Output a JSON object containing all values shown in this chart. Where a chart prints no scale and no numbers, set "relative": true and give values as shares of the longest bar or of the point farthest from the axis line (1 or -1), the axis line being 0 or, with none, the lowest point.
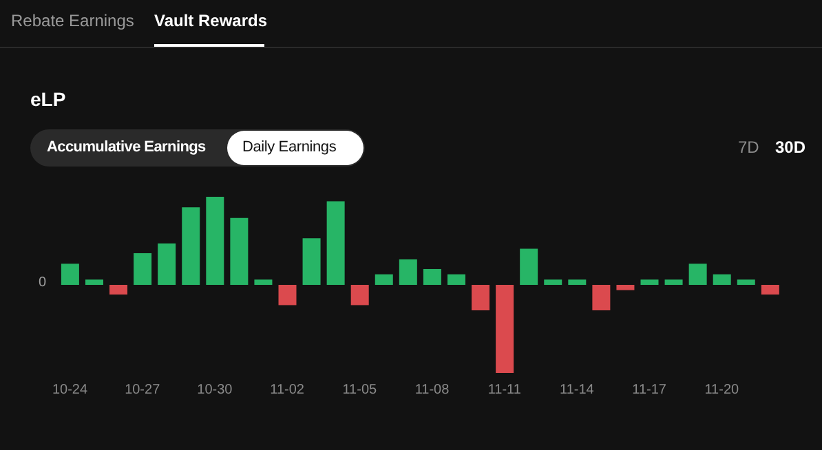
{
  "chart_data": {
    "type": "bar",
    "title": "eLP",
    "relative": true,
    "categories": [
      "10-24",
      null,
      null,
      "10-27",
      null,
      null,
      "10-30",
      null,
      null,
      "11-02",
      null,
      null,
      "11-05",
      null,
      null,
      "11-08",
      null,
      null,
      "11-11",
      null,
      null,
      "11-14",
      null,
      null,
      "11-17",
      null,
      null,
      "11-20",
      null,
      null
    ],
    "values": [
      0.24,
      0.06,
      -0.11,
      0.36,
      0.47,
      0.88,
      1,
      0.76,
      0.06,
      -0.23,
      0.53,
      0.95,
      -0.23,
      0.12,
      0.29,
      0.18,
      0.12,
      -0.29,
      -1,
      0.41,
      0.06,
      0.06,
      -0.29,
      -0.06,
      0.06,
      0.06,
      0.24,
      0.12,
      0.06,
      -0.11
    ],
    "colors": [
      "#27b566",
      "#27b566",
      "#db4a4e",
      "#27b566",
      "#27b566",
      "#27b566",
      "#27b566",
      "#27b566",
      "#27b566",
      "#db4a4e",
      "#27b566",
      "#27b566",
      "#db4a4e",
      "#27b566",
      "#27b566",
      "#27b566",
      "#27b566",
      "#db4a4e",
      "#db4a4e",
      "#27b566",
      "#27b566",
      "#27b566",
      "#db4a4e",
      "#db4a4e",
      "#27b566",
      "#27b566",
      "#27b566",
      "#27b566",
      "#27b566",
      "#db4a4e"
    ],
    "annotations": [
      "Rebate Earnings",
      "Vault Rewards",
      "Accumulative Earnings",
      "Daily Earnings",
      "7D",
      "30D",
      "0"
    ]
  }
}
